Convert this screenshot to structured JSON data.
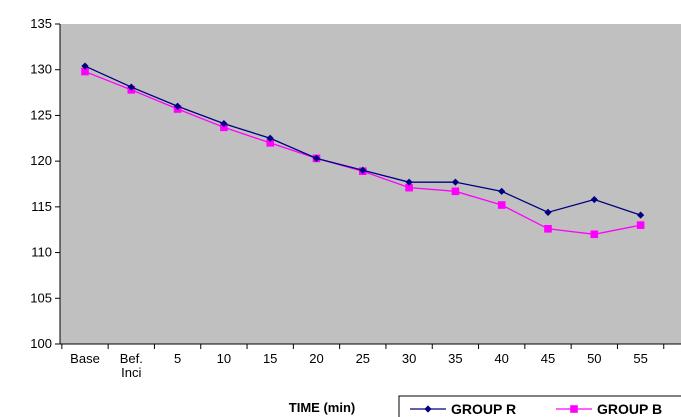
{
  "chart_data": {
    "type": "line",
    "categories": [
      "Base",
      "Bef.\nInci",
      "5",
      "10",
      "15",
      "20",
      "25",
      "30",
      "35",
      "40",
      "45",
      "50",
      "55"
    ],
    "xlabel": "TIME (min)",
    "ylabel": "",
    "ylim": [
      100,
      135
    ],
    "yticks": [
      100,
      105,
      110,
      115,
      120,
      125,
      130,
      135
    ],
    "grid": false,
    "legend_position": "bottom-right",
    "plot_background": "#c0c0c0",
    "series": [
      {
        "name": "GROUP R",
        "color": "#000080",
        "marker": "diamond",
        "values": [
          130.4,
          128.1,
          126.0,
          124.1,
          122.5,
          120.3,
          119.0,
          117.7,
          117.7,
          116.7,
          114.4,
          115.8,
          114.1
        ]
      },
      {
        "name": "GROUP B",
        "color": "#ff00ff",
        "marker": "square",
        "values": [
          129.8,
          127.8,
          125.7,
          123.7,
          122.0,
          120.3,
          118.9,
          117.1,
          116.7,
          115.2,
          112.6,
          112.0,
          113.0
        ]
      }
    ]
  }
}
